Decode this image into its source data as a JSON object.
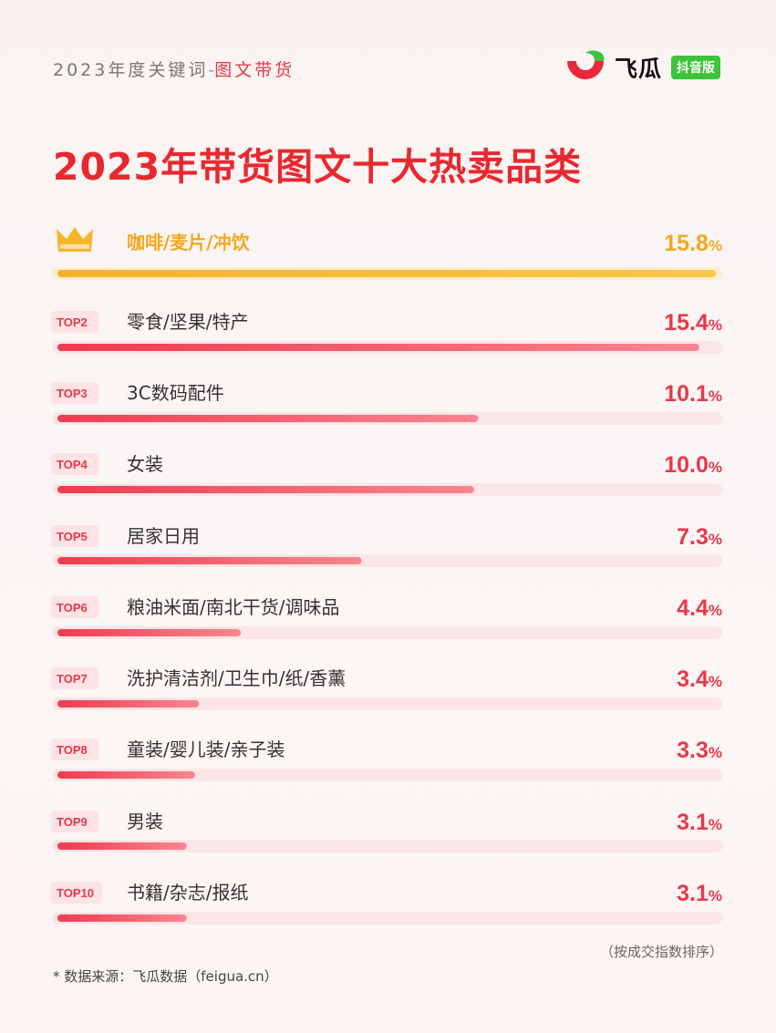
{
  "header": {
    "kicker_prefix": "2023年度关键词",
    "kicker_sep": "-",
    "kicker_highlight": "图文带货",
    "brand_name": "飞瓜",
    "brand_badge": "抖音版"
  },
  "footer": {
    "sort_note": "（按成交指数排序）",
    "source_note": "* 数据来源：飞瓜数据（feigua.cn）"
  },
  "colors": {
    "title_red": "#e8282f",
    "gold": "#f7b52c",
    "red": "#e8384a",
    "track": "#fbe5e6",
    "logo_green": "#3bc43a"
  },
  "chart_data": {
    "type": "bar",
    "orientation": "horizontal",
    "title": "2023年带货图文十大热卖品类",
    "value_suffix": "%",
    "xlim": [
      0,
      15.8
    ],
    "rank_labels": [
      "",
      "TOP2",
      "TOP3",
      "TOP4",
      "TOP5",
      "TOP6",
      "TOP7",
      "TOP8",
      "TOP9",
      "TOP10"
    ],
    "categories": [
      "咖啡/麦片/冲饮",
      "零食/坚果/特产",
      "3C数码配件",
      "女装",
      "居家日用",
      "粮油米面/南北干货/调味品",
      "洗护清洁剂/卫生巾/纸/香薰",
      "童装/婴儿装/亲子装",
      "男装",
      "书籍/杂志/报纸"
    ],
    "values": [
      15.8,
      15.4,
      10.1,
      10.0,
      7.3,
      4.4,
      3.4,
      3.3,
      3.1,
      3.1
    ],
    "value_labels": [
      "15.8",
      "15.4",
      "10.1",
      "10.0",
      "7.3",
      "4.4",
      "3.4",
      "3.3",
      "3.1",
      "3.1"
    ],
    "top_icon": "crown-icon"
  }
}
